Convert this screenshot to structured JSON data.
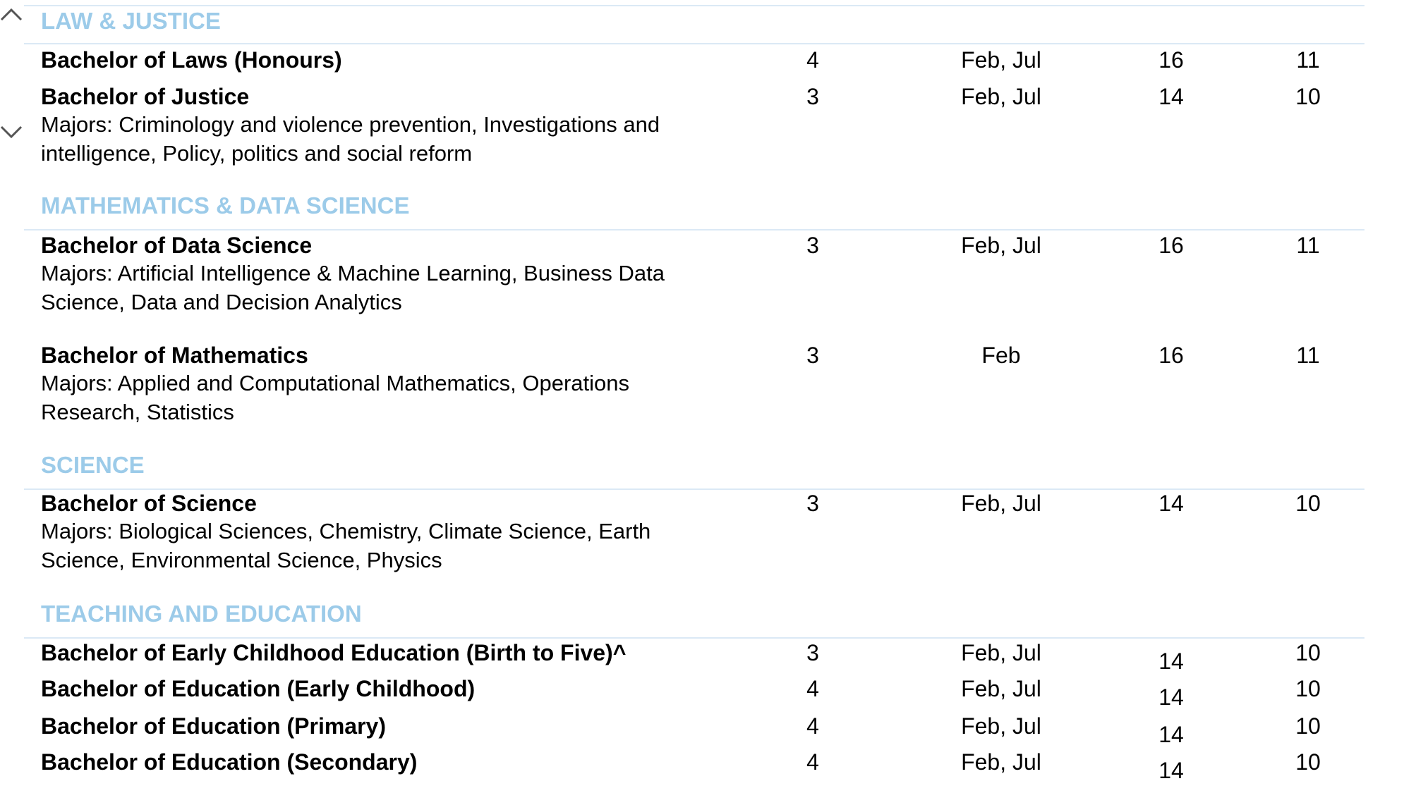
{
  "sections": [
    {
      "title": "LAW & JUSTICE",
      "rows": [
        {
          "name": "Bachelor of Laws (Honours)",
          "cells": [
            "4",
            "Feb, Jul",
            "16",
            "11"
          ]
        },
        {
          "name": "Bachelor of Justice",
          "majors": "Majors: Criminology and violence prevention, Investigations and intelligence, Policy, politics and social reform",
          "cells": [
            "3",
            "Feb, Jul",
            "14",
            "10"
          ]
        }
      ]
    },
    {
      "title": "MATHEMATICS & DATA SCIENCE",
      "rows": [
        {
          "name": "Bachelor of Data Science",
          "majors": "Majors: Artificial Intelligence & Machine Learning, Business Data Science, Data and Decision Analytics",
          "cells": [
            "3",
            "Feb, Jul",
            "16",
            "11"
          ]
        },
        {
          "name": "Bachelor of Mathematics",
          "majors": "Majors: Applied and Computational Mathematics, Operations Research, Statistics",
          "cells": [
            "3",
            "Feb",
            "16",
            "11"
          ]
        }
      ]
    },
    {
      "title": "SCIENCE",
      "rows": [
        {
          "name": "Bachelor of Science",
          "majors": "Majors: Biological Sciences, Chemistry, Climate Science, Earth Science, Environmental Science, Physics",
          "cells": [
            "3",
            "Feb, Jul",
            "14",
            "10"
          ]
        }
      ]
    },
    {
      "title": "TEACHING AND EDUCATION",
      "rows": [
        {
          "name": "Bachelor of Early Childhood Education (Birth to Five)^",
          "cells": [
            "3",
            "Feb, Jul",
            "14",
            "10"
          ]
        },
        {
          "name": "Bachelor of Education (Early Childhood)",
          "cells": [
            "4",
            "Feb, Jul",
            "14",
            "10"
          ]
        },
        {
          "name": "Bachelor of Education (Primary)",
          "cells": [
            "4",
            "Feb, Jul",
            "14",
            "10"
          ]
        },
        {
          "name": "Bachelor of Education (Secondary)",
          "cells": [
            "4",
            "Feb, Jul",
            "14",
            "10"
          ]
        }
      ]
    }
  ]
}
